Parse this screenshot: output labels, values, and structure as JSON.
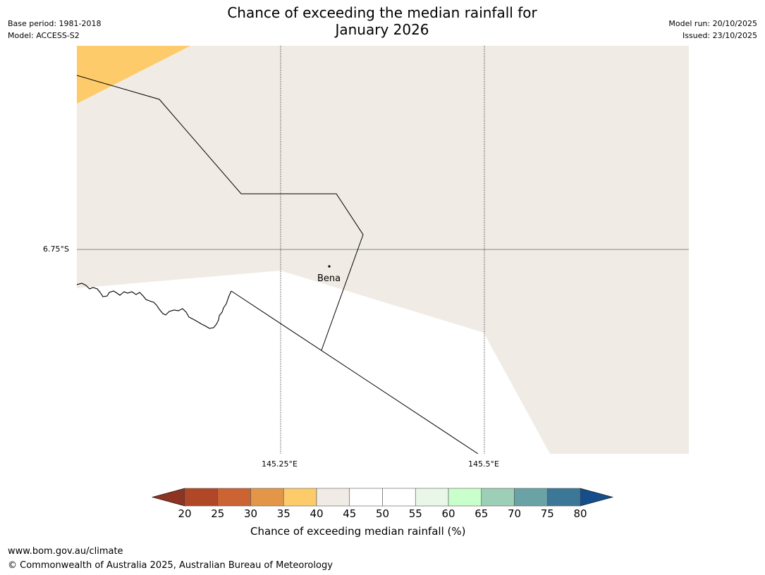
{
  "header": {
    "left_line1": "Base period: 1981-2018",
    "left_line2": "Model: ACCESS-S2",
    "title_line1": "Chance of exceeding the median rainfall for",
    "title_line2": "January 2026",
    "right_line1": "Model run: 20/10/2025",
    "right_line2": "Issued: 23/10/2025"
  },
  "map": {
    "lat_label": "6.75°S",
    "lon_labels": [
      "145.25°E",
      "145.5°E"
    ],
    "place": "Bena",
    "colors": {
      "background_class": "#f0ebe5",
      "upper_class": "#fdcb6a",
      "below_class": "#ffffff",
      "line": "#000000",
      "gridline": "#888888"
    }
  },
  "colorbar": {
    "ticks": [
      "20",
      "25",
      "30",
      "35",
      "40",
      "45",
      "50",
      "55",
      "60",
      "65",
      "70",
      "75",
      "80"
    ],
    "under_color": "#8d3422",
    "over_color": "#154e8a",
    "colors": [
      "#b04827",
      "#cc6332",
      "#e39548",
      "#fdcb6a",
      "#f0ebe5",
      "#ffffff",
      "#ffffff",
      "#e9f7e9",
      "#c9ffca",
      "#9dcfb8",
      "#6aa3a5",
      "#3d7798"
    ],
    "label": "Chance of exceeding median rainfall (%)"
  },
  "footer": {
    "url": "www.bom.gov.au/climate",
    "copyright": "© Commonwealth of Australia 2025, Australian Bureau of Meteorology"
  }
}
